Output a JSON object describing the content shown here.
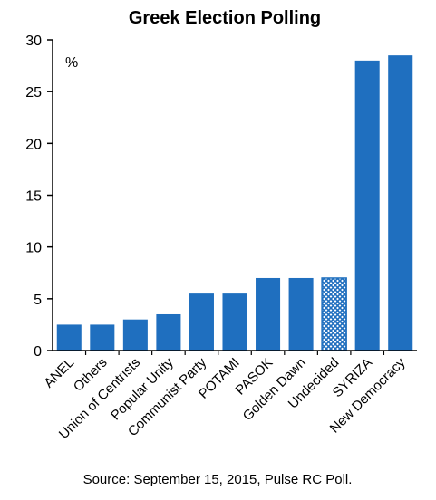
{
  "chart_data": {
    "type": "bar",
    "title": "Greek Election Polling",
    "unit_label": "%",
    "categories": [
      "ANEL",
      "Others",
      "Union of Centrists",
      "Popular Unity",
      "Communist Party",
      "POTAMI",
      "PASOK",
      "Golden Dawn",
      "Undecided",
      "SYRIZA",
      "New Democracy"
    ],
    "values": [
      2.5,
      2.5,
      3.0,
      3.5,
      5.5,
      5.5,
      7.0,
      7.0,
      7.0,
      28.0,
      28.5
    ],
    "highlight": [
      "",
      "",
      "",
      "",
      "",
      "",
      "",
      "",
      "hatched",
      "",
      ""
    ],
    "ylim": [
      0,
      30
    ],
    "yticks": [
      "0",
      "5",
      "10",
      "15",
      "20",
      "25",
      "30"
    ],
    "grid": false,
    "colors": {
      "bar": "#1F6FBF",
      "hatch": "#1F6FBF",
      "axis": "#000000"
    },
    "source": "Source: September 15, 2015, Pulse RC Poll."
  }
}
